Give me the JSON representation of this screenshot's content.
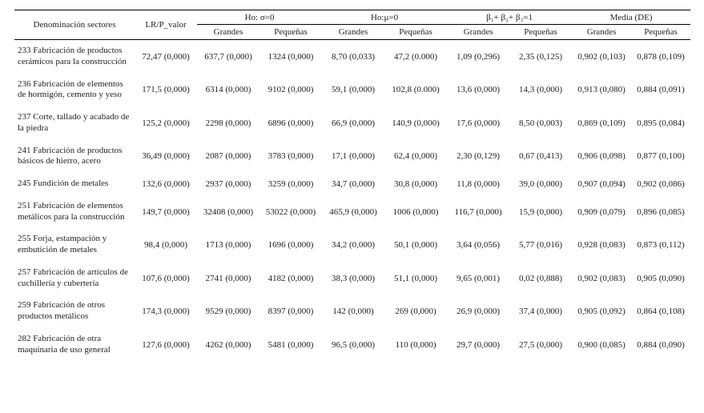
{
  "header": {
    "sector_label": "Denominación sectores",
    "lr_label": "LR/P_valor",
    "groups": [
      {
        "label": "Ho: σ=0"
      },
      {
        "label": "Ho:μ=0"
      },
      {
        "label": "β₁+ β₂+ β₃=1"
      },
      {
        "label": "Media (DE)"
      }
    ],
    "sub_large": "Grandes",
    "sub_small": "Pequeñas"
  },
  "rows": [
    {
      "sector": "233 Fabricación de productos cerámicos para la construcción",
      "lr": "72,47 (0,000)",
      "sigma_g": "637,7 (0,000)",
      "sigma_p": "1324 (0,000)",
      "mu_g": "8,70 (0,033)",
      "mu_p": "47,2 (0.000)",
      "beta_g": "1,09 (0,296)",
      "beta_p": "2,35 (0,125)",
      "media_g": "0,902 (0,103)",
      "media_p": "0,878 (0,109)"
    },
    {
      "sector": "236 Fabricación de elementos de hormigón, cemento y yeso",
      "lr": "171,5 (0,000)",
      "sigma_g": "6314 (0,000)",
      "sigma_p": "9102 (0,000)",
      "mu_g": "59,1 (0,000)",
      "mu_p": "102,8 (0.000)",
      "beta_g": "13,6 (0,000)",
      "beta_p": "14,3 (0,000)",
      "media_g": "0,913 (0,080)",
      "media_p": "0,884 (0,091)"
    },
    {
      "sector": "237 Corte, tallado y acabado de la piedra",
      "lr": "125,2 (0,000)",
      "sigma_g": "2298 (0,000)",
      "sigma_p": "6896 (0,000)",
      "mu_g": "66,9 (0,000)",
      "mu_p": "140,9 (0,000)",
      "beta_g": "17,6 (0,000)",
      "beta_p": "8,50 (0,003)",
      "media_g": "0,869 (0,109)",
      "media_p": "0,895 (0,084)"
    },
    {
      "sector": "241 Fabricación de productos básicos de hierro, acero",
      "lr": "36,49 (0,000)",
      "sigma_g": "2087 (0,000)",
      "sigma_p": "3783 (0,000)",
      "mu_g": "17,1 (0,000)",
      "mu_p": "62,4 (0,000)",
      "beta_g": "2,30 (0,129)",
      "beta_p": "0,67 (0,413)",
      "media_g": "0,906 (0,098)",
      "media_p": "0,877 (0,100)"
    },
    {
      "sector": "245 Fundición de metales",
      "lr": "132,6 (0,000)",
      "sigma_g": "2937 (0,000)",
      "sigma_p": "3259 (0,000)",
      "mu_g": "34,7 (0,000)",
      "mu_p": "30,8 (0,000)",
      "beta_g": "11,8 (0,000)",
      "beta_p": "39,0 (0,000)",
      "media_g": "0,907 (0,094)",
      "media_p": "0,902 (0,086)"
    },
    {
      "sector": "251 Fabricación de elementos metálicos para la construcción",
      "lr": "149,7 (0,000)",
      "sigma_g": "32408 (0,000)",
      "sigma_p": "53022 (0,000)",
      "mu_g": "465,9 (0,000)",
      "mu_p": "1006 (0,000)",
      "beta_g": "116,7 (0,000)",
      "beta_p": "15,9 (0,000)",
      "media_g": "0,909 (0,079)",
      "media_p": "0,896 (0,085)"
    },
    {
      "sector": "255 Forja, estampación y embutición de metales",
      "lr": "98,4 (0,000)",
      "sigma_g": "1713 (0,000)",
      "sigma_p": "1696 (0,000)",
      "mu_g": "34,2 (0,000)",
      "mu_p": "50,1 (0,000)",
      "beta_g": "3,64 (0,056)",
      "beta_p": "5,77 (0,016)",
      "media_g": "0,928 (0,083)",
      "media_p": "0,873 (0,112)"
    },
    {
      "sector": "257 Fabricación de artículos de cuchillería y cubertería",
      "lr": "107,6 (0,000)",
      "sigma_g": "2741 (0,000)",
      "sigma_p": "4182 (0,000)",
      "mu_g": "38,3 (0,000)",
      "mu_p": "51,1 (0,000)",
      "beta_g": "9,65 (0,001)",
      "beta_p": "0,02 (0,888)",
      "media_g": "0,902 (0,083)",
      "media_p": "0,905 (0,090)"
    },
    {
      "sector": "259 Fabricación de otros productos metálicos",
      "lr": "174,3 (0,000)",
      "sigma_g": "9529 (0,000)",
      "sigma_p": "8397 (0,000)",
      "mu_g": "142 (0,000)",
      "mu_p": "269 (0,000)",
      "beta_g": "26,9 (0,000)",
      "beta_p": "37,4 (0,000)",
      "media_g": "0,905 (0,092)",
      "media_p": "0,864 (0,108)"
    },
    {
      "sector": "282 Fabricación de otra maquinaria de uso general",
      "lr": "127,6 (0,000)",
      "sigma_g": "4262 (0,000)",
      "sigma_p": "5481 (0,000)",
      "mu_g": "96,5 (0,000)",
      "mu_p": "110 (0,000)",
      "beta_g": "29,7 (0,000)",
      "beta_p": "27,5 (0,000)",
      "media_g": "0,900 (0,085)",
      "media_p": "0,884 (0,090)"
    }
  ]
}
